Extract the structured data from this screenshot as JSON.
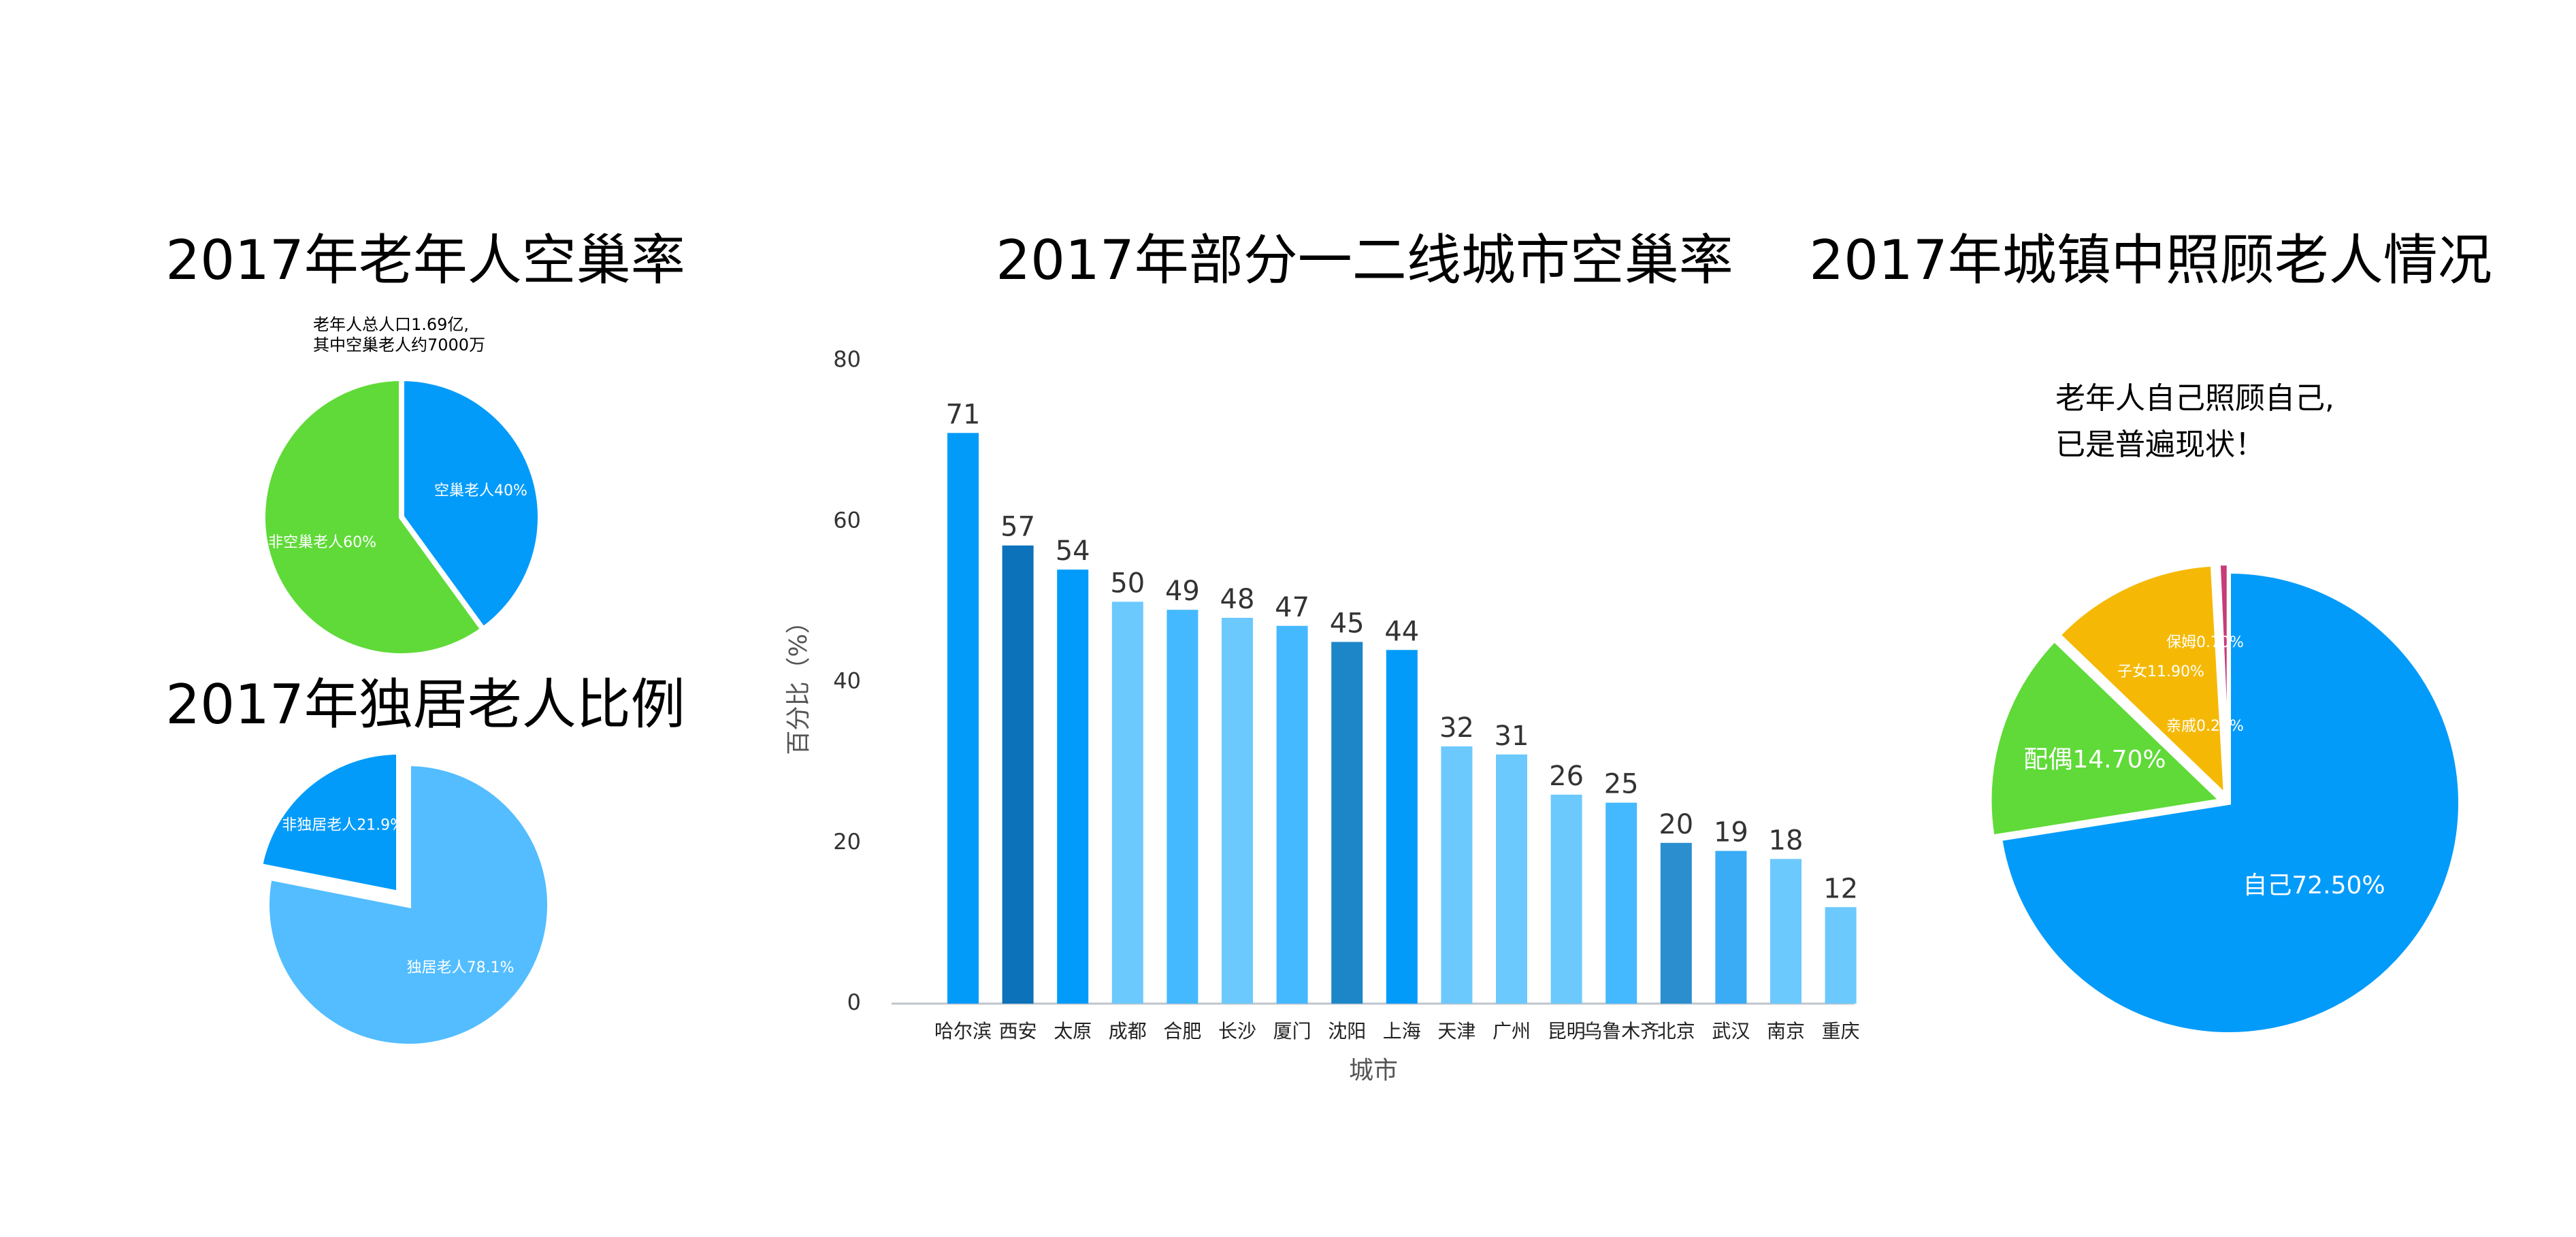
{
  "colors": {
    "blue": "#039BF9",
    "light_blue": "#53BDFF",
    "green": "#5FDA38",
    "yellow": "#F5B905",
    "magenta": "#C73C79",
    "dark_blue": "#0C72B9",
    "mid_dark_blue": "#1C86C8",
    "pale_blue": "#6CC9FE",
    "sky_blue": "#45B9FF",
    "axis": "#BFC5CC"
  },
  "chart_data": [
    {
      "type": "pie",
      "title": "2017年老年人空巢率",
      "annotation": [
        "老年人总人口1.69亿,",
        "其中空巢老人约7000万"
      ],
      "slices": [
        {
          "label": "空巢老人40%",
          "value": 40,
          "color": "#039BF9",
          "exploded": false
        },
        {
          "label": "非空巢老人60%",
          "value": 60,
          "color": "#5FDA38",
          "exploded": false
        }
      ]
    },
    {
      "type": "pie",
      "title": "2017年独居老人比例",
      "slices": [
        {
          "label": "独居老人78.1%",
          "value": 78.1,
          "color": "#53BDFF",
          "exploded": false
        },
        {
          "label": "非独居老人21.9%",
          "value": 21.9,
          "color": "#039BF9",
          "exploded": true
        }
      ]
    },
    {
      "type": "bar",
      "title": "2017年部分一二线城市空巢率",
      "xlabel": "城市",
      "ylabel": "百分比（%）",
      "ylim": [
        0,
        80
      ],
      "yticks": [
        0,
        20,
        40,
        60,
        80
      ],
      "grid": false,
      "categories": [
        "哈尔滨",
        "西安",
        "太原",
        "成都",
        "合肥",
        "长沙",
        "厦门",
        "沈阳",
        "上海",
        "天津",
        "广州",
        "昆明",
        "乌鲁木齐",
        "北京",
        "武汉",
        "南京",
        "重庆"
      ],
      "values": [
        71,
        57,
        54,
        50,
        49,
        48,
        47,
        45,
        44,
        32,
        31,
        26,
        25,
        20,
        19,
        18,
        12
      ],
      "bar_colors": [
        "#039BF9",
        "#0C72B9",
        "#039BF9",
        "#6CC9FE",
        "#45B9FF",
        "#6CC9FE",
        "#45B9FF",
        "#1C86C8",
        "#039BF9",
        "#6CC9FE",
        "#6CC9FE",
        "#6CC9FE",
        "#45B9FF",
        "#2B8ECF",
        "#39ACF5",
        "#6CC9FE",
        "#6CC9FE"
      ]
    },
    {
      "type": "pie",
      "title": "2017年城镇中照顾老人情况",
      "annotation": [
        "老年人自己照顾自己,",
        "已是普遍现状！"
      ],
      "slices": [
        {
          "label": "自己72.50%",
          "value": 72.5,
          "color": "#039BF9",
          "exploded": false
        },
        {
          "label": "配偶14.70%",
          "value": 14.7,
          "color": "#5FDA38",
          "exploded": true
        },
        {
          "label": "子女11.90%",
          "value": 11.9,
          "color": "#F5B905",
          "exploded": true
        },
        {
          "label": "亲戚0.20%",
          "value": 0.2,
          "color": "#C73C79",
          "exploded": true
        },
        {
          "label": "保姆0.70%",
          "value": 0.7,
          "color": "#C73C79",
          "exploded": true
        }
      ]
    }
  ]
}
